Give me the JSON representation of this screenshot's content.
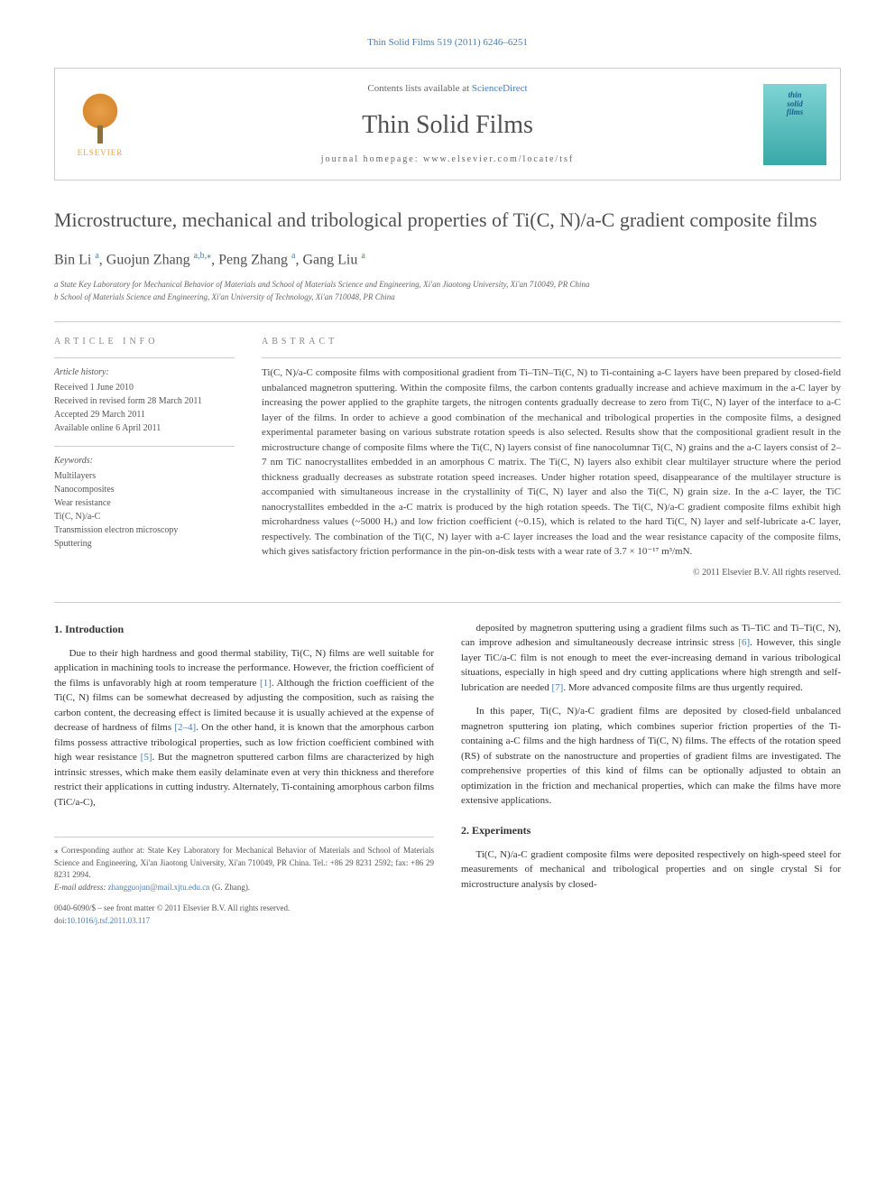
{
  "top_link": "Thin Solid Films 519 (2011) 6246–6251",
  "header": {
    "contents_prefix": "Contents lists available at ",
    "contents_link": "ScienceDirect",
    "journal_title": "Thin Solid Films",
    "homepage_prefix": "journal homepage: ",
    "homepage_url": "www.elsevier.com/locate/tsf",
    "publisher_name": "ELSEVIER",
    "cover_line1": "thin",
    "cover_line2": "solid",
    "cover_line3": "films"
  },
  "article": {
    "title": "Microstructure, mechanical and tribological properties of Ti(C, N)/a-C gradient composite films",
    "authors_html": "Bin Li <sup>a</sup>, Guojun Zhang <sup>a,b,</sup><sup class='star'>⁎</sup>, Peng Zhang <sup>a</sup>, Gang Liu <sup>a</sup>",
    "affiliations": [
      "a State Key Laboratory for Mechanical Behavior of Materials and School of Materials Science and Engineering, Xi'an Jiaotong University, Xi'an 710049, PR China",
      "b School of Materials Science and Engineering, Xi'an University of Technology, Xi'an 710048, PR China"
    ]
  },
  "info": {
    "section_label": "ARTICLE INFO",
    "history_label": "Article history:",
    "history": [
      "Received 1 June 2010",
      "Received in revised form 28 March 2011",
      "Accepted 29 March 2011",
      "Available online 6 April 2011"
    ],
    "keywords_label": "Keywords:",
    "keywords": [
      "Multilayers",
      "Nanocomposites",
      "Wear resistance",
      "Ti(C, N)/a-C",
      "Transmission electron microscopy",
      "Sputtering"
    ]
  },
  "abstract": {
    "label": "ABSTRACT",
    "text": "Ti(C, N)/a-C composite films with compositional gradient from Ti–TiN–Ti(C, N) to Ti-containing a-C layers have been prepared by closed-field unbalanced magnetron sputtering. Within the composite films, the carbon contents gradually increase and achieve maximum in the a-C layer by increasing the power applied to the graphite targets, the nitrogen contents gradually decrease to zero from Ti(C, N) layer of the interface to a-C layer of the films. In order to achieve a good combination of the mechanical and tribological properties in the composite films, a designed experimental parameter basing on various substrate rotation speeds is also selected. Results show that the compositional gradient result in the microstructure change of composite films where the Ti(C, N) layers consist of fine nanocolumnar Ti(C, N) grains and the a-C layers consist of 2–7 nm TiC nanocrystallites embedded in an amorphous C matrix. The Ti(C, N) layers also exhibit clear multilayer structure where the period thickness gradually decreases as substrate rotation speed increases. Under higher rotation speed, disappearance of the multilayer structure is accompanied with simultaneous increase in the crystallinity of Ti(C, N) layer and also the Ti(C, N) grain size. In the a-C layer, the TiC nanocrystallites embedded in the a-C matrix is produced by the high rotation speeds. The Ti(C, N)/a-C gradient composite films exhibit high microhardness values (~5000 Hᵥ) and low friction coefficient (~0.15), which is related to the hard Ti(C, N) layer and self-lubricate a-C layer, respectively. The combination of the Ti(C, N) layer with a-C layer increases the load and the wear resistance capacity of the composite films, which gives satisfactory friction performance in the pin-on-disk tests with a wear rate of 3.7 × 10⁻¹⁷ m³/mN.",
    "copyright": "© 2011 Elsevier B.V. All rights reserved."
  },
  "body": {
    "intro_heading": "1. Introduction",
    "intro_p1": "Due to their high hardness and good thermal stability, Ti(C, N) films are well suitable for application in machining tools to increase the performance. However, the friction coefficient of the films is unfavorably high at room temperature [1]. Although the friction coefficient of the Ti(C, N) films can be somewhat decreased by adjusting the composition, such as raising the carbon content, the decreasing effect is limited because it is usually achieved at the expense of decrease of hardness of films [2–4]. On the other hand, it is known that the amorphous carbon films possess attractive tribological properties, such as low friction coefficient combined with high wear resistance [5]. But the magnetron sputtered carbon films are characterized by high intrinsic stresses, which make them easily delaminate even at very thin thickness and therefore restrict their applications in cutting industry. Alternately, Ti-containing amorphous carbon films (TiC/a-C),",
    "intro_p2": "deposited by magnetron sputtering using a gradient films such as Ti–TiC and Ti–Ti(C, N), can improve adhesion and simultaneously decrease intrinsic stress [6]. However, this single layer TiC/a-C film is not enough to meet the ever-increasing demand in various tribological situations, especially in high speed and dry cutting applications where high strength and self-lubrication are needed [7]. More advanced composite films are thus urgently required.",
    "intro_p3": "In this paper, Ti(C, N)/a-C gradient films are deposited by closed-field unbalanced magnetron sputtering ion plating, which combines superior friction properties of the Ti-containing a-C films and the high hardness of Ti(C, N) films. The effects of the rotation speed (RS) of substrate on the nanostructure and properties of gradient films are investigated. The comprehensive properties of this kind of films can be optionally adjusted to obtain an optimization in the friction and mechanical properties, which can make the films have more extensive applications.",
    "exp_heading": "2. Experiments",
    "exp_p1": "Ti(C, N)/a-C gradient composite films were deposited respectively on high-speed steel for measurements of mechanical and tribological properties and on single crystal Si for microstructure analysis by closed-"
  },
  "footnote": {
    "corresponding": "⁎ Corresponding author at: State Key Laboratory for Mechanical Behavior of Materials and School of Materials Science and Engineering, Xi'an Jiaotong University, Xi'an 710049, PR China. Tel.: +86 29 8231 2592; fax: +86 29 8231 2994.",
    "email_label": "E-mail address: ",
    "email": "zhangguojun@mail.xjtu.edu.cn",
    "email_suffix": " (G. Zhang)."
  },
  "bottom": {
    "issn_line": "0040-6090/$ – see front matter © 2011 Elsevier B.V. All rights reserved.",
    "doi_label": "doi:",
    "doi": "10.1016/j.tsf.2011.03.117"
  },
  "colors": {
    "link": "#4a7db8",
    "text": "#333333",
    "muted": "#666666",
    "border": "#cccccc",
    "elsevier_orange": "#e8a04c",
    "cover_teal": "#7fd4d4"
  }
}
